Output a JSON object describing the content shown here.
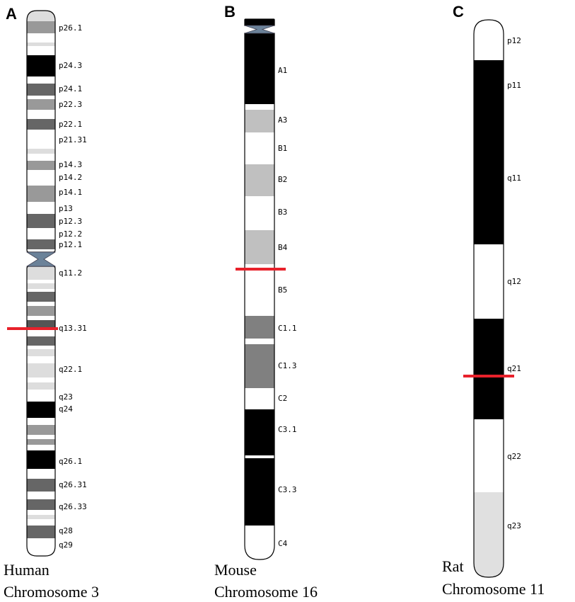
{
  "panels": [
    {
      "letter": "A",
      "caption": [
        "Human",
        "Chromosome 3"
      ],
      "labels": [
        "p26.1",
        "p24.3",
        "p24.1",
        "p22.3",
        "p22.1",
        "p21.31",
        "p14.3",
        "p14.2",
        "p14.1",
        "p13",
        "p12.3",
        "p12.2",
        "p12.1",
        "q11.2",
        "q13.31",
        "q22.1",
        "q23",
        "q24",
        "q26.1",
        "q26.31",
        "q26.33",
        "q28",
        "q29"
      ]
    },
    {
      "letter": "B",
      "caption": [
        "Mouse",
        "Chromosome 16"
      ],
      "labels": [
        "A1",
        "A3",
        "B1",
        "B2",
        "B3",
        "B4",
        "B5",
        "C1.1",
        "C1.3",
        "C2",
        "C3.1",
        "C3.3",
        "C4"
      ]
    },
    {
      "letter": "C",
      "caption": [
        "Rat",
        "Chromosome 11"
      ],
      "labels": [
        "p12",
        "p11",
        "q11",
        "q12",
        "q21",
        "q22",
        "q23"
      ]
    }
  ]
}
